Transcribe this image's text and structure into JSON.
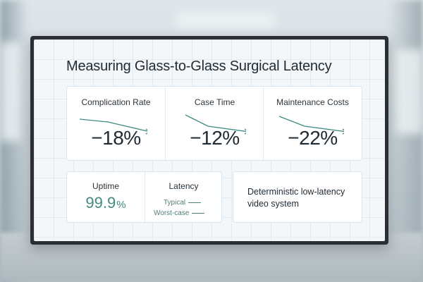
{
  "title": "Measuring Glass-to-Glass Surgical Latency",
  "metrics": [
    {
      "label": "Complication Rate",
      "value": "−18%"
    },
    {
      "label": "Case Time",
      "value": "−12%"
    },
    {
      "label": "Maintenance Costs",
      "value": "−22%"
    }
  ],
  "uptime": {
    "label": "Uptime",
    "value": "99.9",
    "unit": "%"
  },
  "latency": {
    "label": "Latency",
    "typical": "Typical",
    "worst": "Worst-case"
  },
  "system": {
    "line1": "Deterministic low-latency",
    "line2": "video system"
  },
  "colors": {
    "accent": "#3f8a7f",
    "trend": "#3c8c82",
    "text": "#1f2a33"
  }
}
